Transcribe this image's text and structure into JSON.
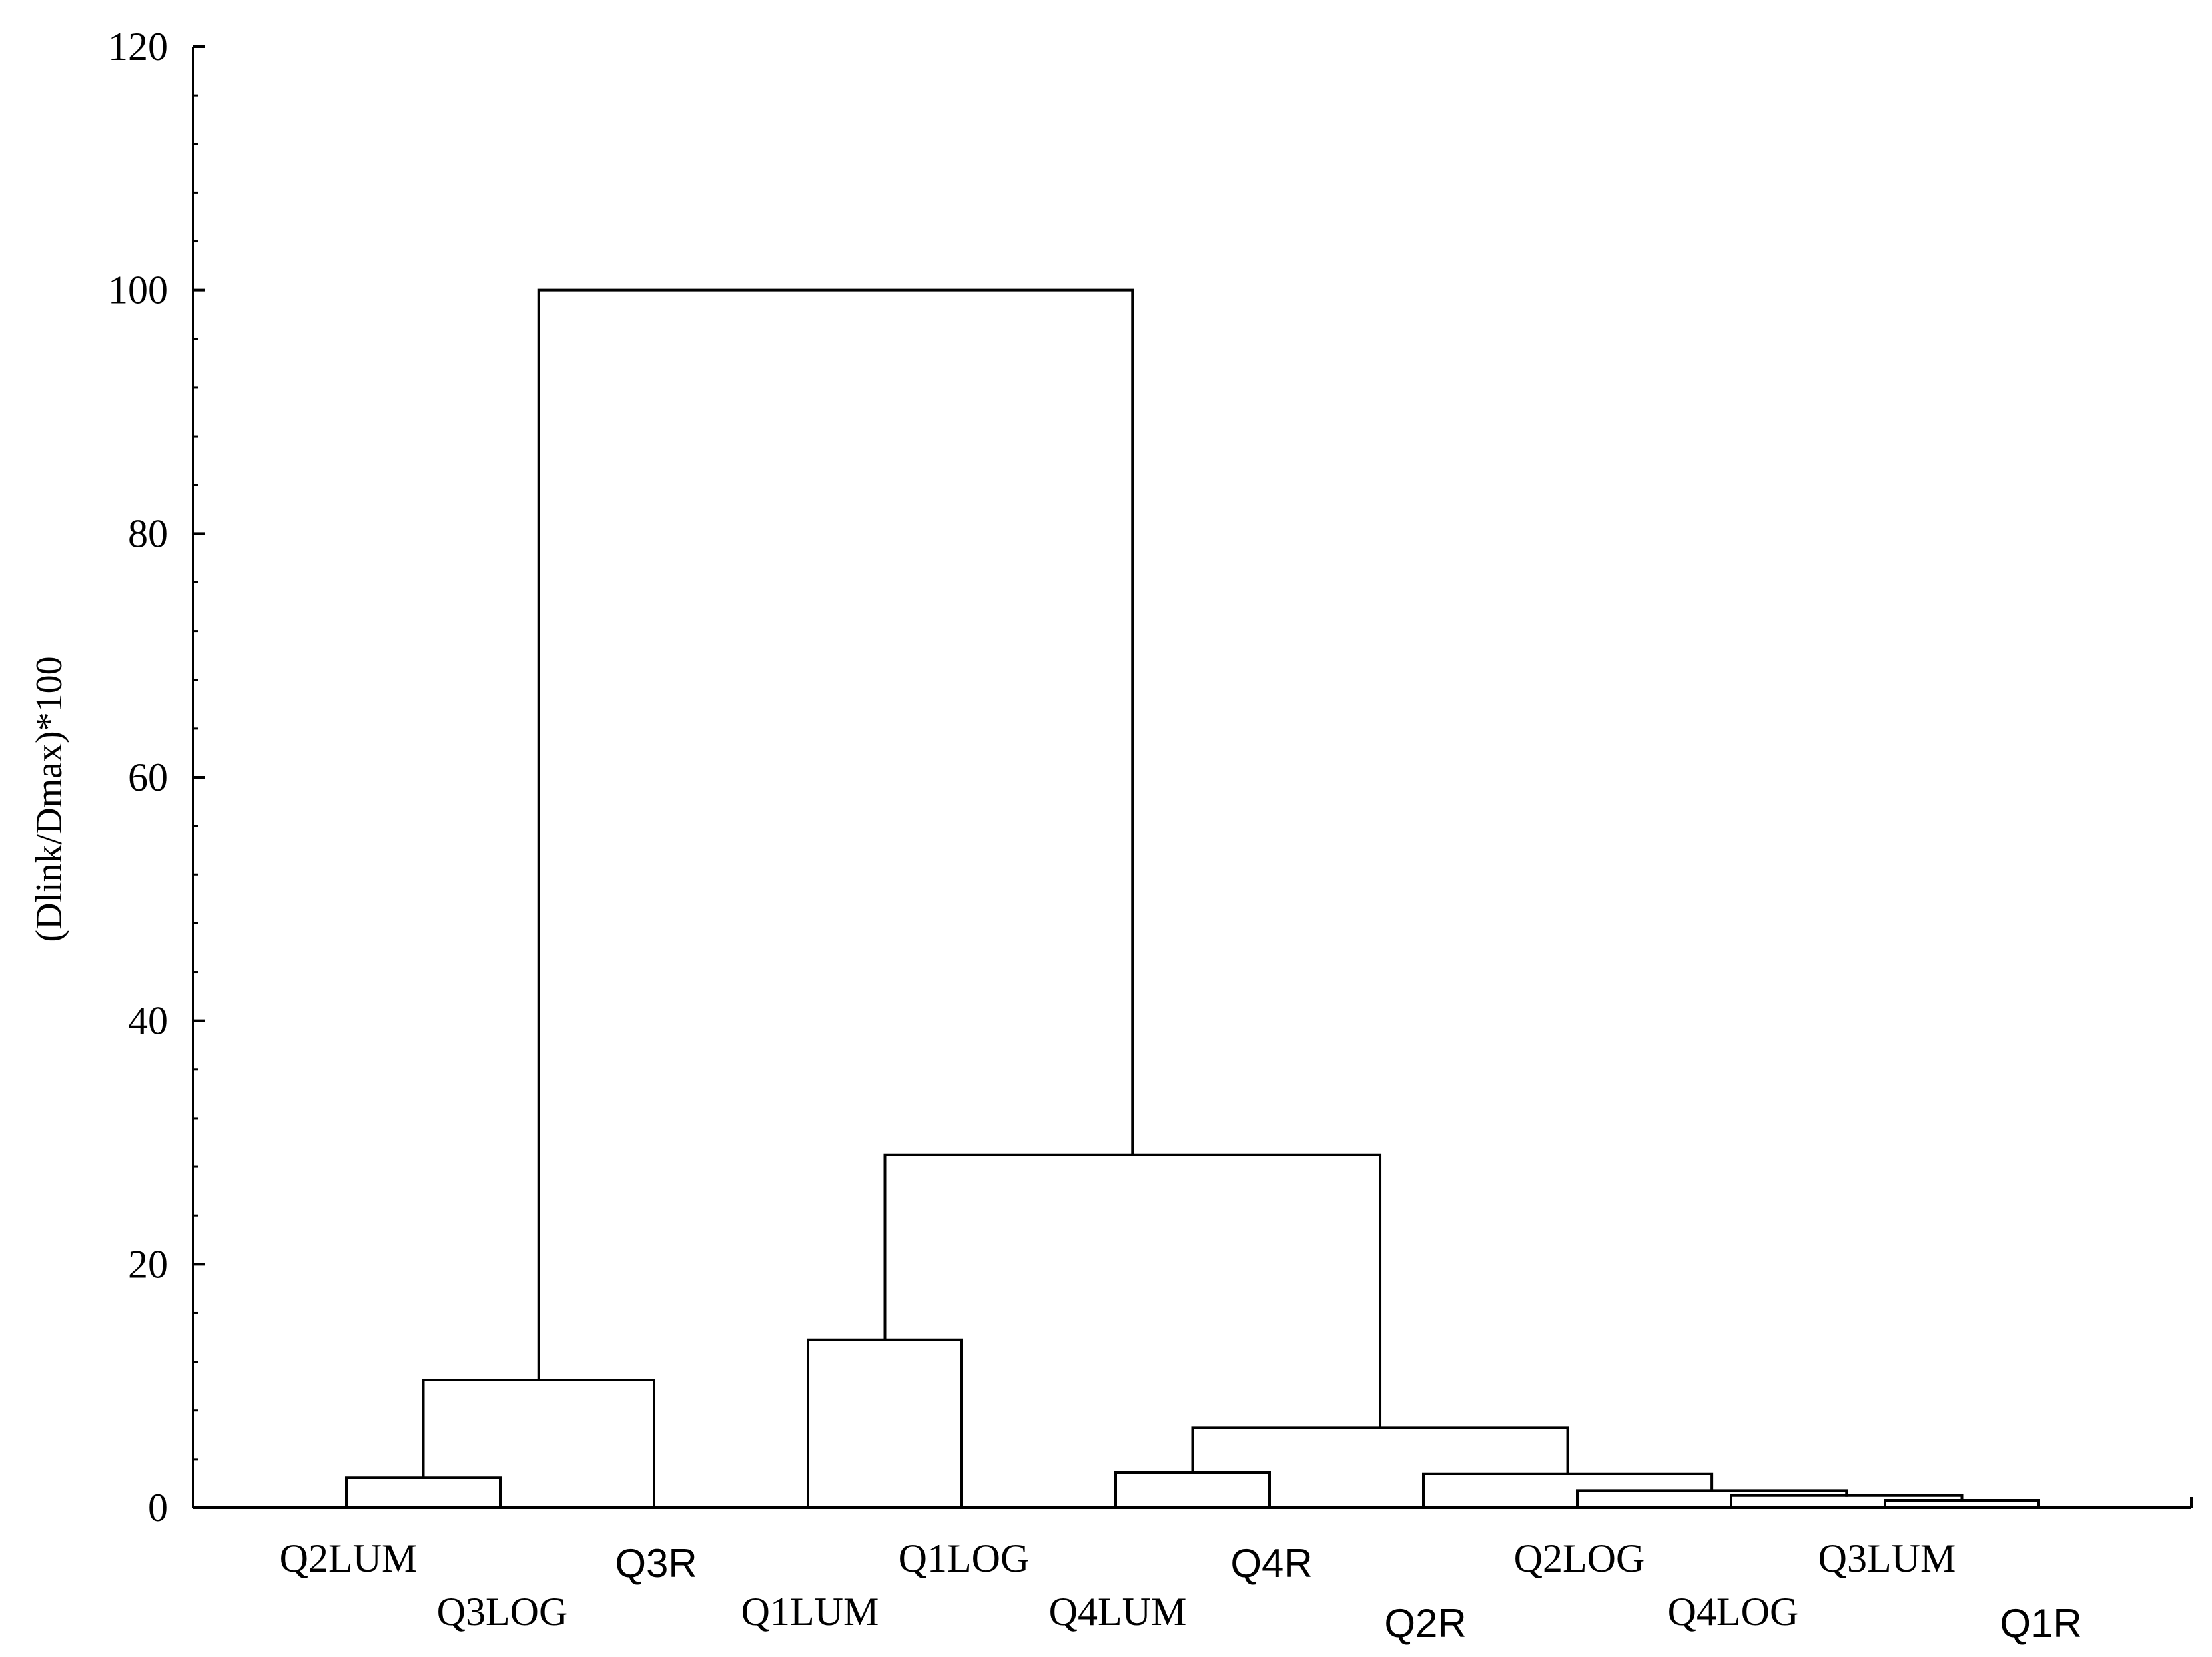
{
  "chart_data": {
    "type": "dendrogram",
    "title": "",
    "ylabel": "(Dlink/Dmax)*100",
    "xlabel": "",
    "ylim": [
      0,
      120
    ],
    "yticks": [
      0,
      20,
      40,
      60,
      80,
      100,
      120
    ],
    "minor_tick_step": 4,
    "grid": false,
    "colors": {
      "line": "#000000",
      "text": "#000000"
    },
    "leaves": [
      "Q2LUM",
      "Q3LOG",
      "Q3R",
      "Q1LUM",
      "Q1LOG",
      "Q4LUM",
      "Q4R",
      "Q2R",
      "Q2LOG",
      "Q4LOG",
      "Q3LUM",
      "Q1R"
    ],
    "leaf_label_styles": [
      "serif",
      "serif",
      "sans",
      "serif",
      "serif",
      "serif",
      "sans",
      "sans",
      "serif",
      "serif",
      "serif",
      "sans"
    ],
    "merges": [
      {
        "left": "Q2LUM",
        "right": "Q3LOG",
        "height": 2.5
      },
      {
        "left": "(Q2LUM,Q3LOG)",
        "right": "Q3R",
        "height": 10.5
      },
      {
        "left": "Q1LUM",
        "right": "Q1LOG",
        "height": 13.8
      },
      {
        "left": "Q4LUM",
        "right": "Q4R",
        "height": 2.9
      },
      {
        "left": "Q3LUM",
        "right": "Q1R",
        "height": 0.6
      },
      {
        "left": "Q4LOG",
        "right": "(Q3LUM,Q1R)",
        "height": 1.0
      },
      {
        "left": "Q2LOG",
        "right": "(Q4LOG,Q3LUM,Q1R)",
        "height": 1.4
      },
      {
        "left": "Q2R",
        "right": "(Q2LOG,...)",
        "height": 2.8
      },
      {
        "left": "(Q4LUM,Q4R)",
        "right": "(Q2R,...)",
        "height": 6.6
      },
      {
        "left": "(Q1LUM,Q1LOG)",
        "right": "(Q4LUM,...)",
        "height": 29.0
      },
      {
        "left": "(Q2LUM,Q3LOG,Q3R)",
        "right": "(Q1LUM,...)",
        "height": 100.0
      }
    ]
  }
}
